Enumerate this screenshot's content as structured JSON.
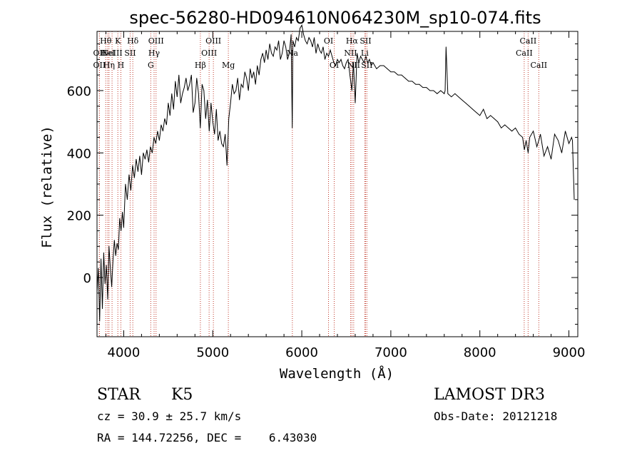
{
  "chart_data": {
    "type": "line",
    "title": "spec-56280-HD094610N064230M_sp10-074.fits",
    "xlabel": "Wavelength (Å)",
    "ylabel": "Flux (relative)",
    "xlim": [
      3700,
      9100
    ],
    "ylim": [
      -190,
      790
    ],
    "xticks": [
      {
        "v": 4000,
        "label": "4000"
      },
      {
        "v": 5000,
        "label": "5000"
      },
      {
        "v": 6000,
        "label": "6000"
      },
      {
        "v": 7000,
        "label": "7000"
      },
      {
        "v": 8000,
        "label": "8000"
      },
      {
        "v": 9000,
        "label": "9000"
      }
    ],
    "yticks": [
      {
        "v": 0,
        "label": "0"
      },
      {
        "v": 200,
        "label": "200"
      },
      {
        "v": 400,
        "label": "400"
      },
      {
        "v": 600,
        "label": "600"
      }
    ],
    "series": [
      {
        "name": "flux",
        "color": "#000000",
        "x": [
          3700,
          3715,
          3730,
          3745,
          3760,
          3775,
          3790,
          3805,
          3820,
          3835,
          3850,
          3865,
          3880,
          3895,
          3910,
          3925,
          3940,
          3955,
          3970,
          3985,
          4000,
          4020,
          4040,
          4060,
          4080,
          4100,
          4120,
          4140,
          4160,
          4180,
          4200,
          4220,
          4240,
          4260,
          4280,
          4300,
          4320,
          4340,
          4360,
          4380,
          4400,
          4420,
          4440,
          4460,
          4480,
          4500,
          4520,
          4540,
          4560,
          4580,
          4600,
          4620,
          4640,
          4660,
          4680,
          4700,
          4720,
          4740,
          4760,
          4780,
          4800,
          4820,
          4840,
          4860,
          4880,
          4900,
          4920,
          4940,
          4960,
          4980,
          5000,
          5020,
          5040,
          5060,
          5080,
          5100,
          5120,
          5140,
          5160,
          5180,
          5200,
          5220,
          5240,
          5260,
          5280,
          5300,
          5320,
          5340,
          5360,
          5380,
          5400,
          5420,
          5440,
          5460,
          5480,
          5500,
          5520,
          5540,
          5560,
          5580,
          5600,
          5620,
          5640,
          5660,
          5680,
          5700,
          5720,
          5740,
          5760,
          5780,
          5800,
          5820,
          5840,
          5860,
          5880,
          5893,
          5900,
          5920,
          5940,
          5960,
          5980,
          6000,
          6020,
          6040,
          6060,
          6080,
          6100,
          6120,
          6140,
          6160,
          6180,
          6200,
          6220,
          6240,
          6260,
          6280,
          6300,
          6320,
          6340,
          6360,
          6380,
          6400,
          6420,
          6440,
          6460,
          6480,
          6500,
          6520,
          6540,
          6563,
          6580,
          6600,
          6620,
          6640,
          6660,
          6680,
          6700,
          6720,
          6740,
          6760,
          6780,
          6800,
          6840,
          6880,
          6920,
          6960,
          7000,
          7040,
          7080,
          7120,
          7160,
          7200,
          7240,
          7280,
          7320,
          7360,
          7400,
          7440,
          7480,
          7520,
          7560,
          7600,
          7610,
          7620,
          7640,
          7680,
          7720,
          7760,
          7800,
          7840,
          7880,
          7920,
          7960,
          8000,
          8040,
          8080,
          8120,
          8160,
          8200,
          8240,
          8280,
          8320,
          8360,
          8400,
          8440,
          8480,
          8500,
          8520,
          8542,
          8560,
          8600,
          8640,
          8662,
          8680,
          8720,
          8760,
          8800,
          8840,
          8880,
          8920,
          8960,
          9000,
          9030,
          9040,
          9060
        ],
        "values": [
          -50,
          30,
          -140,
          60,
          -100,
          80,
          -20,
          40,
          -70,
          100,
          30,
          -30,
          60,
          120,
          70,
          110,
          90,
          190,
          150,
          210,
          160,
          300,
          250,
          330,
          280,
          360,
          320,
          380,
          340,
          390,
          330,
          400,
          380,
          410,
          370,
          420,
          400,
          450,
          430,
          470,
          440,
          490,
          470,
          510,
          490,
          560,
          520,
          590,
          540,
          630,
          580,
          650,
          560,
          590,
          610,
          640,
          600,
          620,
          650,
          530,
          560,
          640,
          590,
          480,
          620,
          600,
          510,
          570,
          470,
          560,
          500,
          460,
          540,
          440,
          470,
          430,
          420,
          460,
          360,
          510,
          560,
          620,
          590,
          600,
          640,
          570,
          620,
          610,
          660,
          640,
          600,
          670,
          640,
          660,
          620,
          680,
          650,
          700,
          720,
          690,
          730,
          700,
          750,
          720,
          710,
          740,
          730,
          760,
          700,
          720,
          760,
          740,
          700,
          720,
          780,
          480,
          760,
          740,
          770,
          760,
          800,
          810,
          780,
          760,
          750,
          770,
          760,
          740,
          770,
          720,
          750,
          730,
          720,
          740,
          700,
          720,
          710,
          730,
          710,
          690,
          680,
          700,
          690,
          700,
          680,
          670,
          690,
          700,
          650,
          600,
          690,
          560,
          720,
          690,
          710,
          700,
          690,
          710,
          690,
          700,
          680,
          690,
          670,
          680,
          680,
          670,
          660,
          660,
          650,
          650,
          640,
          630,
          630,
          620,
          620,
          610,
          610,
          600,
          600,
          590,
          600,
          590,
          600,
          740,
          590,
          580,
          590,
          580,
          570,
          560,
          550,
          540,
          530,
          520,
          540,
          510,
          520,
          510,
          500,
          480,
          490,
          480,
          470,
          480,
          460,
          450,
          410,
          440,
          400,
          450,
          470,
          420,
          440,
          460,
          390,
          420,
          380,
          460,
          440,
          400,
          470,
          430,
          450,
          440,
          250
        ]
      }
    ],
    "lines": [
      {
        "x": 3798,
        "label": "Hθ",
        "row": 1
      },
      {
        "x": 3727,
        "label": "OII",
        "row": 2
      },
      {
        "x": 3820,
        "label": "HeI",
        "row": 2
      },
      {
        "x": 3727,
        "label": "OII",
        "row": 3
      },
      {
        "x": 3835,
        "label": "Hη",
        "row": 3
      },
      {
        "x": 3869,
        "label": "NeIII",
        "row": 2
      },
      {
        "x": 3934,
        "label": "K",
        "row": 1
      },
      {
        "x": 3968,
        "label": "H",
        "row": 3
      },
      {
        "x": 4072,
        "label": "SII",
        "row": 2
      },
      {
        "x": 4102,
        "label": "Hδ",
        "row": 1
      },
      {
        "x": 4304,
        "label": "G",
        "row": 3
      },
      {
        "x": 4341,
        "label": "Hγ",
        "row": 2
      },
      {
        "x": 4363,
        "label": "OIII",
        "row": 1
      },
      {
        "x": 4861,
        "label": "Hβ",
        "row": 3
      },
      {
        "x": 4959,
        "label": "OIII",
        "row": 2
      },
      {
        "x": 5007,
        "label": "OIII",
        "row": 1
      },
      {
        "x": 5175,
        "label": "Mg",
        "row": 3
      },
      {
        "x": 5894,
        "label": "Na",
        "row": 2
      },
      {
        "x": 6300,
        "label": "OI",
        "row": 1
      },
      {
        "x": 6364,
        "label": "OI",
        "row": 3
      },
      {
        "x": 6548,
        "label": "NII",
        "row": 2
      },
      {
        "x": 6563,
        "label": "Hα",
        "row": 1
      },
      {
        "x": 6583,
        "label": "NII",
        "row": 3
      },
      {
        "x": 6707,
        "label": "Li",
        "row": 2
      },
      {
        "x": 6716,
        "label": "SII",
        "row": 1
      },
      {
        "x": 6731,
        "label": "SII",
        "row": 3
      },
      {
        "x": 8498,
        "label": "CaII",
        "row": 2
      },
      {
        "x": 8542,
        "label": "CaII",
        "row": 1
      },
      {
        "x": 8662,
        "label": "CaII",
        "row": 3
      }
    ]
  },
  "info": {
    "class": "STAR",
    "subclass": "K5",
    "survey": "LAMOST DR3",
    "cz": "cz = 30.9 ± 25.7 km/s",
    "obs_date": "Obs-Date: 20121218",
    "radec": "RA = 144.72256, DEC =    6.43030"
  }
}
